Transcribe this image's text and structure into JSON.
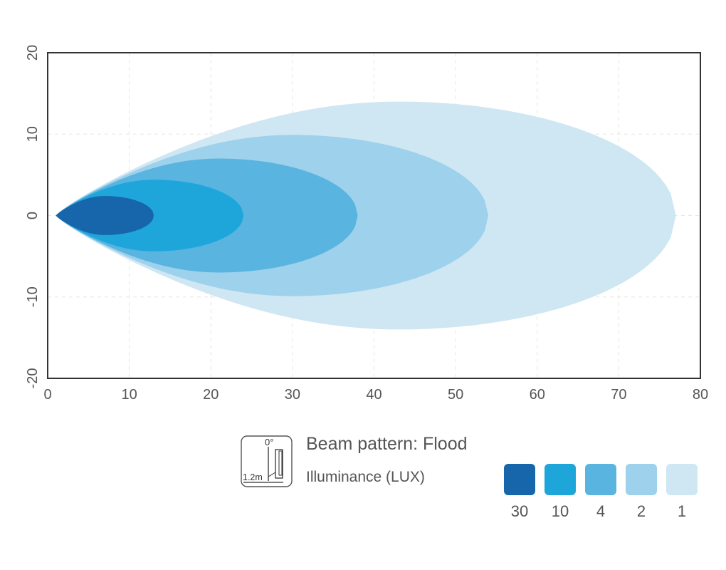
{
  "chart_data": {
    "type": "area",
    "title": "",
    "xlabel": "",
    "ylabel": "",
    "xlim": [
      0,
      80
    ],
    "ylim": [
      -20,
      20
    ],
    "x_ticks": [
      "0",
      "10",
      "20",
      "30",
      "40",
      "50",
      "60",
      "70",
      "80"
    ],
    "y_ticks": [
      "20",
      "10",
      "0",
      "-10",
      "-20"
    ],
    "grid": true,
    "series": [
      {
        "name": "1",
        "color": "#cfe6f3",
        "x_start": 1,
        "x_end": 77,
        "half_width_max": 14,
        "x_at_max": 43
      },
      {
        "name": "2",
        "color": "#9dd1ec",
        "x_start": 1,
        "x_end": 54,
        "half_width_max": 9.9,
        "x_at_max": 30
      },
      {
        "name": "4",
        "color": "#5ab4e0",
        "x_start": 1,
        "x_end": 38,
        "half_width_max": 7,
        "x_at_max": 21
      },
      {
        "name": "10",
        "color": "#1ea6db",
        "x_start": 1,
        "x_end": 24,
        "half_width_max": 4.4,
        "x_at_max": 13
      },
      {
        "name": "30",
        "color": "#1765aa",
        "x_start": 1,
        "x_end": 13,
        "half_width_max": 2.4,
        "x_at_max": 7
      }
    ]
  },
  "legend": {
    "title": "Beam pattern: Flood",
    "subtitle": "Illuminance (LUX)",
    "icon_name": "lamp-mount-icon",
    "icon_angle_label": "0°",
    "icon_height_label": "1.2m",
    "items": [
      {
        "label": "30",
        "color": "#1765aa"
      },
      {
        "label": "10",
        "color": "#1ea6db"
      },
      {
        "label": "4",
        "color": "#5ab4e0"
      },
      {
        "label": "2",
        "color": "#9dd1ec"
      },
      {
        "label": "1",
        "color": "#cfe6f3"
      }
    ]
  }
}
